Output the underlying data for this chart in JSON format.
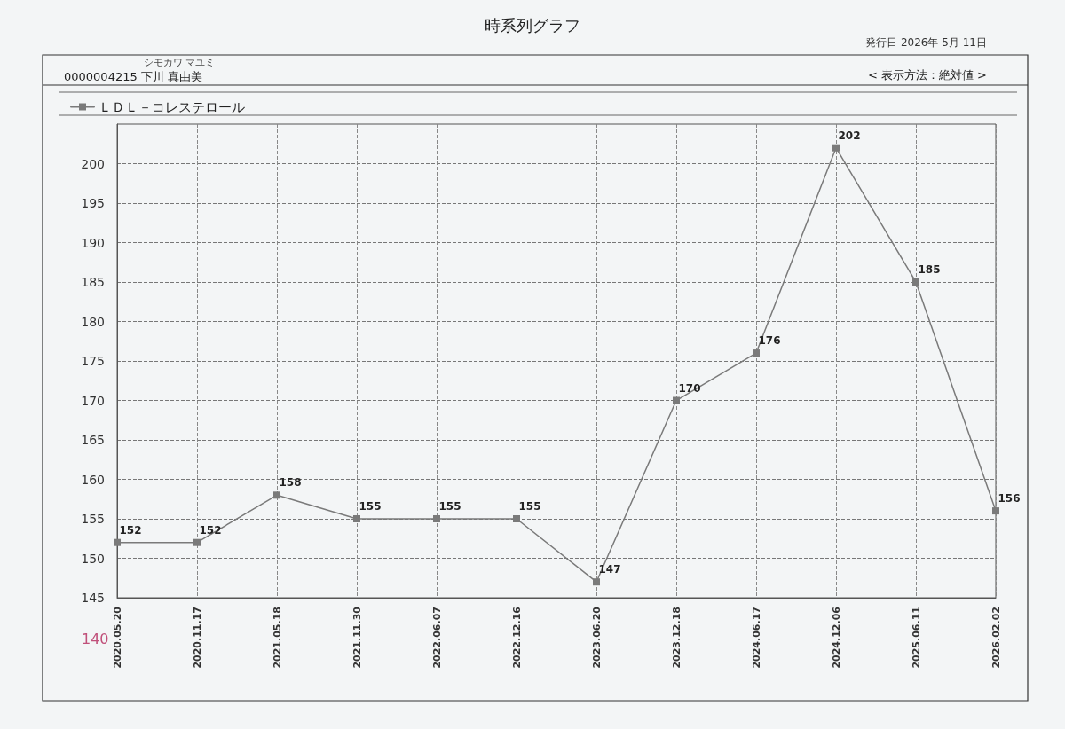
{
  "chart_data": {
    "type": "line",
    "title": "時系列グラフ",
    "annotations": [
      "発行日 2026年 5月 11日",
      "シモカワ マユミ",
      "0000004215 下川 真由美",
      "< 表示方法：絶対値 >",
      "140"
    ],
    "categories": [
      "2020.05.20",
      "2020.11.17",
      "2021.05.18",
      "2021.11.30",
      "2022.06.07",
      "2022.12.16",
      "2023.06.20",
      "2023.12.18",
      "2024.06.17",
      "2024.12.06",
      "2025.06.11",
      "2026.02.02"
    ],
    "series": [
      {
        "name": "ＬＤＬ－コレステロール",
        "color": "#7a7a7a",
        "values": [
          152,
          152,
          158,
          155,
          155,
          155,
          147,
          170,
          176,
          202,
          185,
          156
        ]
      }
    ],
    "ylim": [
      145,
      205
    ],
    "yticks": [
      145,
      150,
      155,
      160,
      165,
      170,
      175,
      180,
      185,
      190,
      195,
      200
    ],
    "grid": true,
    "legend": "top left",
    "marker": "square",
    "line_style": "solid",
    "data_labels": true
  }
}
